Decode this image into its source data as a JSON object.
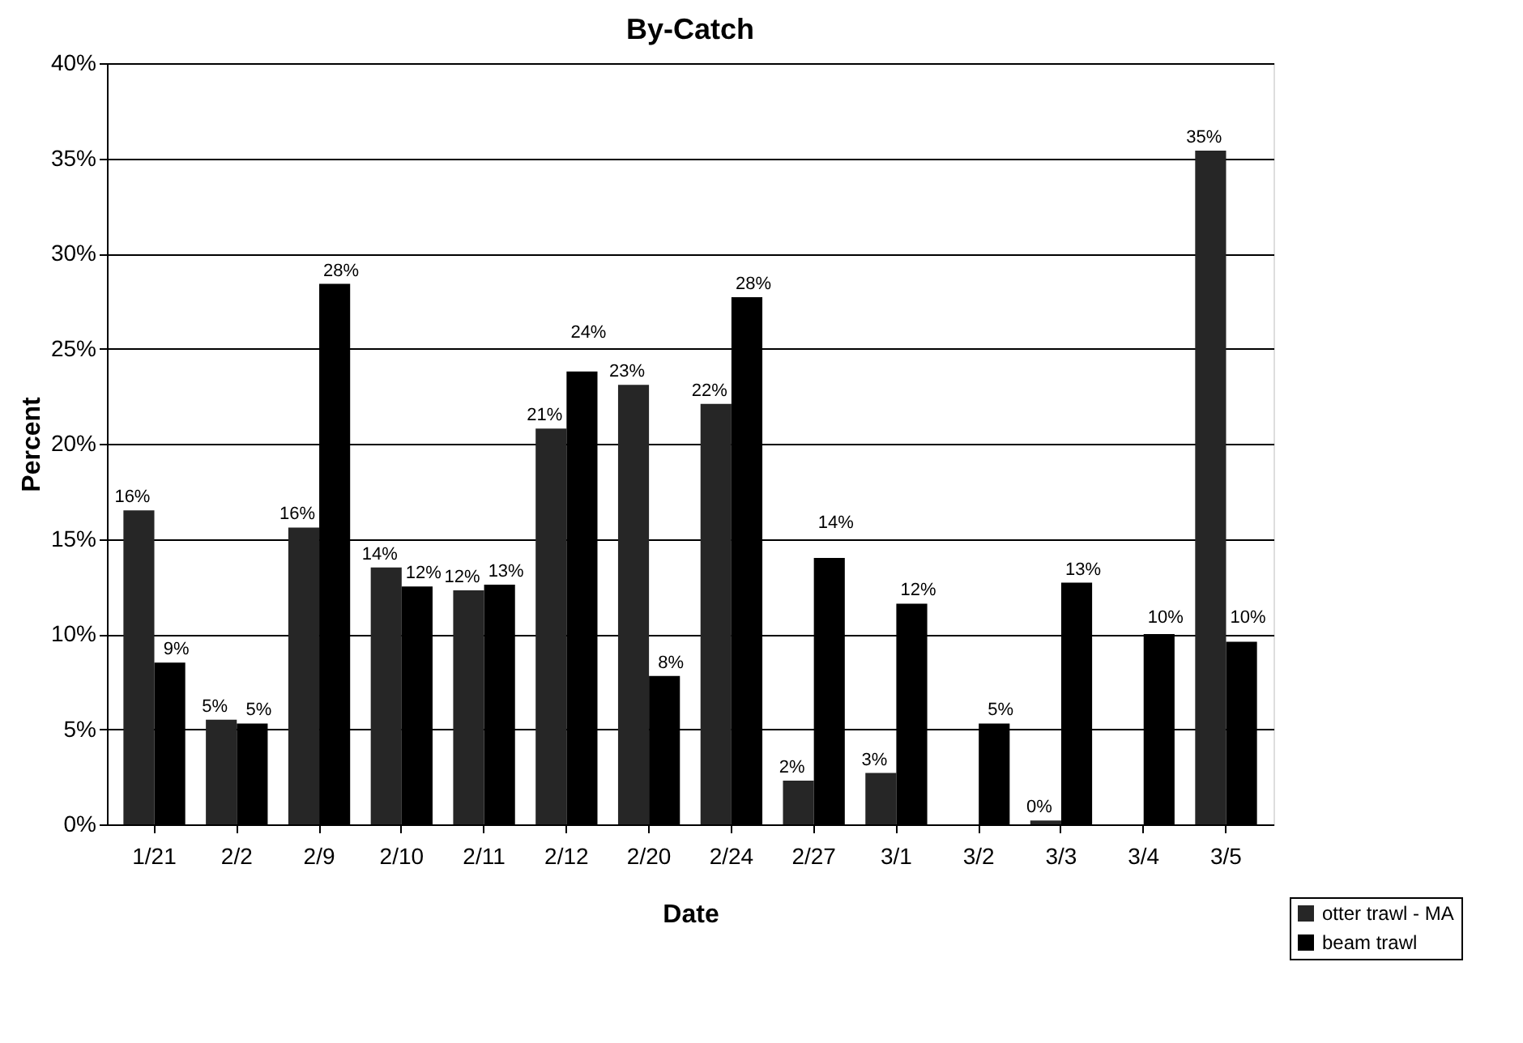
{
  "chart_data": {
    "type": "bar",
    "title": "By-Catch",
    "xlabel": "Date",
    "ylabel": "Percent",
    "categories": [
      "1/21",
      "2/2",
      "2/9",
      "2/10",
      "2/11",
      "2/12",
      "2/20",
      "2/24",
      "2/27",
      "3/1",
      "3/2",
      "3/3",
      "3/4",
      "3/5"
    ],
    "series": [
      {
        "name": "otter trawl - MA",
        "color": "#262626",
        "values": [
          16.5,
          5.5,
          15.6,
          13.5,
          12.3,
          20.8,
          23.1,
          22.1,
          2.3,
          2.7,
          null,
          0.2,
          null,
          35.4
        ],
        "value_labels": [
          "16%",
          "5%",
          "16%",
          "14%",
          "12%",
          "21%",
          "23%",
          "22%",
          "2%",
          "3%",
          null,
          "0%",
          null,
          "35%"
        ]
      },
      {
        "name": "beam trawl",
        "color": "#000000",
        "values": [
          8.5,
          5.3,
          28.4,
          12.5,
          12.6,
          23.8,
          7.8,
          27.7,
          14.0,
          11.6,
          5.3,
          12.7,
          10.0,
          9.6
        ],
        "value_labels": [
          "9%",
          "5%",
          "28%",
          "12%",
          "13%",
          "24%",
          "8%",
          "28%",
          "14%",
          "12%",
          "5%",
          "13%",
          "10%",
          "10%"
        ]
      }
    ],
    "ylim": [
      0,
      40
    ],
    "yticks": [
      {
        "value": 0,
        "label": "0%"
      },
      {
        "value": 5,
        "label": "5%"
      },
      {
        "value": 10,
        "label": "10%"
      },
      {
        "value": 15,
        "label": "15%"
      },
      {
        "value": 20,
        "label": "20%"
      },
      {
        "value": 25,
        "label": "25%"
      },
      {
        "value": 30,
        "label": "30%"
      },
      {
        "value": 35,
        "label": "35%"
      },
      {
        "value": 40,
        "label": "40%"
      }
    ],
    "grid": "y",
    "legend": "bottom right"
  }
}
